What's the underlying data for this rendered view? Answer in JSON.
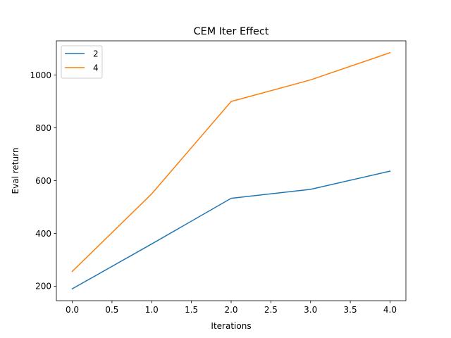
{
  "chart_data": {
    "type": "line",
    "title": "CEM Iter Effect",
    "xlabel": "Iterations",
    "ylabel": "Eval return",
    "x": [
      0,
      1,
      2,
      3,
      4
    ],
    "series": [
      {
        "name": "2",
        "color": "#1f77b4",
        "values": [
          190,
          360,
          533,
          567,
          636
        ]
      },
      {
        "name": "4",
        "color": "#ff7f0e",
        "values": [
          256,
          550,
          900,
          982,
          1085
        ]
      }
    ],
    "xlim": [
      -0.2,
      4.2
    ],
    "ylim": [
      145,
      1130
    ],
    "xticks": [
      0.0,
      0.5,
      1.0,
      1.5,
      2.0,
      2.5,
      3.0,
      3.5,
      4.0
    ],
    "xtick_labels": [
      "0.0",
      "0.5",
      "1.0",
      "1.5",
      "2.0",
      "2.5",
      "3.0",
      "3.5",
      "4.0"
    ],
    "yticks": [
      200,
      400,
      600,
      800,
      1000
    ],
    "ytick_labels": [
      "200",
      "400",
      "600",
      "800",
      "1000"
    ],
    "grid": false,
    "legend_position": "top-left"
  }
}
